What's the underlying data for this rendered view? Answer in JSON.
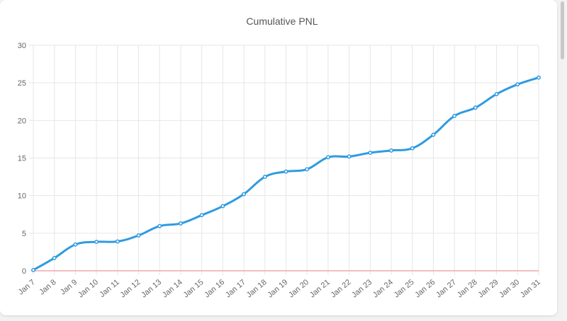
{
  "chart_data": {
    "type": "line",
    "title": "Cumulative PNL",
    "xlabel": "",
    "ylabel": "",
    "categories": [
      "Jan 7",
      "Jan 8",
      "Jan 9",
      "Jan 10",
      "Jan 11",
      "Jan 12",
      "Jan 13",
      "Jan 14",
      "Jan 15",
      "Jan 16",
      "Jan 17",
      "Jan 18",
      "Jan 19",
      "Jan 20",
      "Jan 21",
      "Jan 22",
      "Jan 23",
      "Jan 24",
      "Jan 25",
      "Jan 26",
      "Jan 27",
      "Jan 28",
      "Jan 29",
      "Jan 30",
      "Jan 31"
    ],
    "series": [
      {
        "values": [
          0.1,
          1.7,
          3.5,
          3.85,
          3.9,
          4.7,
          5.95,
          6.3,
          7.4,
          8.6,
          10.2,
          12.5,
          13.2,
          13.5,
          15.1,
          15.2,
          15.7,
          16.0,
          16.3,
          18.1,
          20.6,
          21.7,
          23.5,
          24.8,
          25.7
        ],
        "color": "#2f9be0"
      }
    ],
    "yticks": [
      "0",
      "5",
      "10",
      "15",
      "20",
      "25",
      "30"
    ],
    "ylim": [
      0,
      30
    ],
    "grid": true,
    "baseline": {
      "value": 0,
      "color": "#f4a7a7"
    }
  }
}
